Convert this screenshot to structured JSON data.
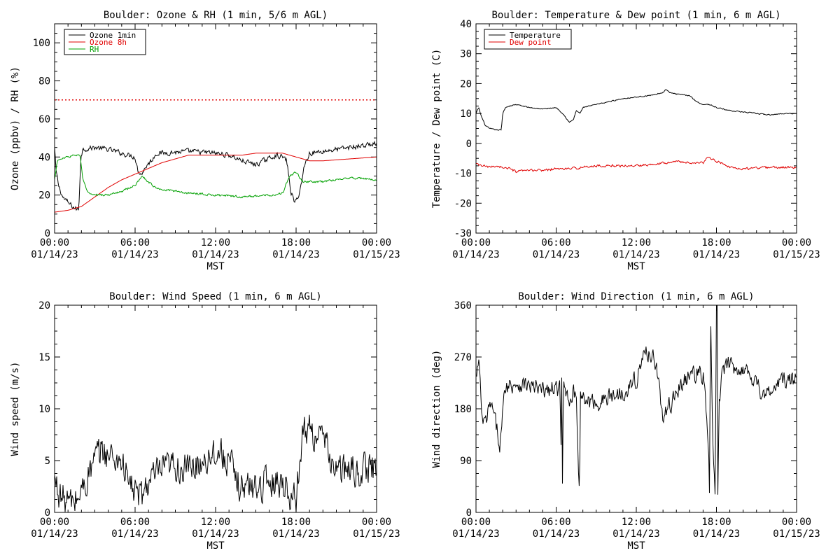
{
  "x_axis": {
    "ticks": [
      {
        "time": "00:00",
        "date": "01/14/23"
      },
      {
        "time": "06:00",
        "date": "01/14/23"
      },
      {
        "time": "12:00",
        "date": "01/14/23"
      },
      {
        "time": "18:00",
        "date": "01/14/23"
      },
      {
        "time": "00:00",
        "date": "01/15/23"
      }
    ],
    "label": "MST",
    "range_hours": [
      0,
      24
    ]
  },
  "chart_data": [
    {
      "type": "line",
      "title": "Boulder: Ozone & RH (1 min, 5/6 m AGL)",
      "ylabel": "Ozone (ppbv) / RH (%)",
      "xlabel": "MST",
      "ylim": [
        0,
        110
      ],
      "yticks": [
        0,
        20,
        40,
        60,
        80,
        100
      ],
      "legend_position": "top-left",
      "reference_line": {
        "y": 70,
        "style": "dotted",
        "color": "#e00000"
      },
      "series": [
        {
          "name": "Ozone 1min",
          "color": "#000000",
          "noise": 1.2,
          "x": [
            0,
            0.1,
            0.3,
            0.6,
            1.0,
            1.5,
            1.8,
            1.95,
            2.1,
            3,
            4,
            5,
            6,
            6.2,
            6.5,
            6.8,
            7.2,
            7.6,
            8,
            10,
            12,
            13,
            14,
            15,
            16.5,
            17,
            17.3,
            17.6,
            17.9,
            18.1,
            18.4,
            18.6,
            19,
            20,
            21,
            22,
            23,
            24
          ],
          "y": [
            45,
            33,
            25,
            19,
            16,
            13,
            12,
            40,
            44,
            45,
            44,
            42,
            40,
            33,
            31,
            35,
            38,
            42,
            42,
            43,
            42,
            41,
            38,
            36,
            41,
            40,
            38,
            22,
            16,
            18,
            26,
            35,
            42,
            43,
            44,
            45,
            46,
            47
          ]
        },
        {
          "name": "Ozone 8h",
          "color": "#e00000",
          "noise": 0,
          "x": [
            0,
            1,
            2,
            3,
            4,
            5,
            6,
            7,
            8,
            9,
            10,
            12,
            14,
            15,
            16,
            17,
            18,
            19,
            20,
            22,
            24
          ],
          "y": [
            11,
            12,
            14,
            19,
            24,
            28,
            31,
            34,
            37,
            39,
            41,
            41,
            41,
            42,
            42,
            42,
            40,
            38,
            38,
            39,
            40
          ]
        },
        {
          "name": "RH",
          "color": "#00a000",
          "noise": 0.5,
          "x": [
            0,
            0.2,
            0.5,
            1.0,
            1.5,
            1.9,
            2.1,
            2.5,
            3,
            4,
            5,
            6,
            6.5,
            7,
            7.5,
            8,
            9,
            10,
            12,
            14,
            16,
            17,
            17.5,
            18,
            18.5,
            19,
            20,
            21,
            22,
            24
          ],
          "y": [
            28,
            38,
            39,
            40,
            41,
            41,
            28,
            21,
            20,
            20,
            22,
            25,
            30,
            27,
            24,
            23,
            22,
            21,
            20,
            19,
            20,
            21,
            30,
            32,
            27,
            27,
            27,
            28,
            29,
            28
          ]
        }
      ]
    },
    {
      "type": "line",
      "title": "Boulder: Temperature & Dew point (1 min, 6 m AGL)",
      "ylabel": "Temperature / Dew point (C)",
      "xlabel": "MST",
      "ylim": [
        -30,
        40
      ],
      "yticks": [
        -30,
        -20,
        -10,
        0,
        10,
        20,
        30,
        40
      ],
      "legend_position": "top-left",
      "series": [
        {
          "name": "Temperature",
          "color": "#000000",
          "noise": 0.15,
          "x": [
            0,
            0.2,
            0.4,
            0.7,
            1.0,
            1.5,
            1.9,
            2.0,
            2.2,
            2.5,
            3,
            4,
            5,
            6,
            6.5,
            7,
            7.3,
            7.5,
            7.8,
            8,
            9,
            10,
            11,
            12,
            13,
            14,
            14.2,
            14.5,
            15,
            16,
            16.5,
            17,
            17.5,
            18,
            19,
            20,
            21,
            22,
            23,
            24
          ],
          "y": [
            10,
            12,
            9,
            6,
            5,
            4.5,
            4.5,
            10,
            12,
            12.5,
            13,
            12,
            11.5,
            12,
            10,
            7,
            8,
            11,
            10,
            12,
            13,
            14,
            15,
            15.5,
            16,
            17,
            18,
            17,
            16.5,
            16,
            14,
            13,
            13,
            12,
            11,
            10.5,
            10,
            9.5,
            10,
            10
          ]
        },
        {
          "name": "Dew point",
          "color": "#e00000",
          "noise": 0.35,
          "x": [
            0,
            0.5,
            1,
            1.5,
            2,
            2.5,
            3,
            4,
            5,
            6,
            7,
            8,
            9,
            10,
            11,
            12,
            13,
            14,
            15,
            16,
            17,
            17.3,
            17.7,
            18,
            18.5,
            19,
            20,
            22,
            24
          ],
          "y": [
            -7,
            -7.5,
            -8,
            -7.5,
            -8,
            -8.5,
            -9.5,
            -9,
            -9,
            -8.5,
            -8.5,
            -8,
            -7.5,
            -7.5,
            -7.5,
            -7.5,
            -7,
            -6.5,
            -6,
            -6.5,
            -6.5,
            -5,
            -5,
            -6,
            -7,
            -8,
            -8.5,
            -8,
            -8
          ]
        }
      ]
    },
    {
      "type": "line",
      "title": "Boulder: Wind Speed (1 min, 6 m AGL)",
      "ylabel": "Wind speed (m/s)",
      "xlabel": "MST",
      "ylim": [
        0,
        20
      ],
      "yticks": [
        0,
        5,
        10,
        15,
        20
      ],
      "series": [
        {
          "name": "Wind speed",
          "color": "#000000",
          "noise": 1.4,
          "x": [
            0,
            0.5,
            1,
            1.5,
            2,
            2.5,
            3,
            3.5,
            4,
            5,
            5.5,
            6,
            6.5,
            7,
            8,
            9,
            10,
            11,
            12,
            13,
            13.5,
            14,
            15,
            16,
            17,
            17.5,
            18,
            18.3,
            18.6,
            19,
            20,
            21,
            22,
            23,
            24
          ],
          "y": [
            3,
            1.5,
            1,
            1,
            2,
            3.5,
            5,
            6,
            5.5,
            5,
            3,
            2,
            1.5,
            3,
            4,
            4.5,
            4,
            5,
            6,
            5,
            3,
            2.5,
            2.5,
            3,
            3,
            2,
            1,
            6,
            8,
            8,
            7,
            4,
            4,
            4,
            4.5
          ]
        }
      ]
    },
    {
      "type": "line",
      "title": "Boulder: Wind Direction (1 min, 6 m AGL)",
      "ylabel": "Wind direction (deg)",
      "xlabel": "MST",
      "ylim": [
        0,
        360
      ],
      "yticks": [
        0,
        90,
        180,
        270,
        360
      ],
      "series": [
        {
          "name": "Wind direction",
          "color": "#000000",
          "noise": 14,
          "x": [
            0,
            0.2,
            0.5,
            0.8,
            1.1,
            1.4,
            1.8,
            2.2,
            3,
            4,
            5,
            6,
            6.3,
            6.35,
            6.4,
            6.45,
            6.55,
            7,
            7.5,
            7.75,
            7.8,
            7.85,
            8,
            9,
            10,
            11,
            12,
            12.5,
            13,
            13.5,
            14,
            14.5,
            15,
            16,
            17,
            17.2,
            17.4,
            17.5,
            17.55,
            17.7,
            17.9,
            18.0,
            18.05,
            18.1,
            18.2,
            18.4,
            18.6,
            19,
            20,
            21,
            21.5,
            22,
            23,
            24
          ],
          "y": [
            230,
            260,
            150,
            160,
            190,
            160,
            120,
            220,
            225,
            220,
            210,
            215,
            215,
            0,
            360,
            5,
            220,
            200,
            210,
            20,
            200,
            210,
            195,
            190,
            200,
            210,
            230,
            270,
            280,
            260,
            160,
            185,
            210,
            240,
            240,
            180,
            120,
            5,
            360,
            150,
            20,
            360,
            360,
            10,
            190,
            240,
            250,
            255,
            250,
            230,
            200,
            210,
            230,
            230
          ]
        }
      ]
    }
  ]
}
